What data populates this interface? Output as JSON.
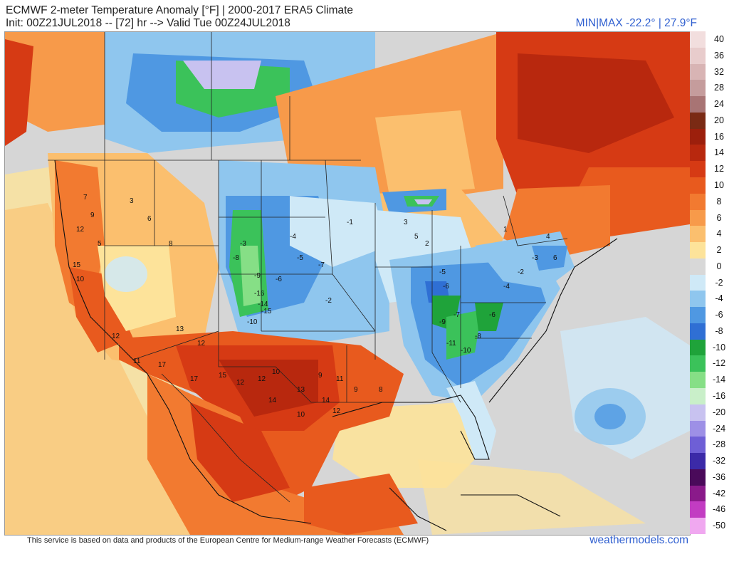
{
  "header": {
    "title_line1": "ECMWF 2-meter Temperature Anomaly [°F] | 2000-2017 ERA5 Climate",
    "title_line2": "Init: 00Z21JUL2018 -- [72] hr --> Valid Tue 00Z24JUL2018",
    "minmax": "MIN|MAX -22.2° | 27.9°F"
  },
  "footer": {
    "credit": "This service is based on data and products of the European Centre for Medium-range Weather Forecasts (ECMWF)",
    "brand": "weathermodels.com"
  },
  "colorbar": [
    {
      "label": "40",
      "color": "#f2dede"
    },
    {
      "label": "36",
      "color": "#e8cccc"
    },
    {
      "label": "32",
      "color": "#d8b4b4"
    },
    {
      "label": "28",
      "color": "#c59c9c"
    },
    {
      "label": "24",
      "color": "#a87474"
    },
    {
      "label": "20",
      "color": "#7a2a14"
    },
    {
      "label": "16",
      "color": "#9c1f0c"
    },
    {
      "label": "14",
      "color": "#b8280e"
    },
    {
      "label": "12",
      "color": "#d63a14"
    },
    {
      "label": "10",
      "color": "#e85a1e"
    },
    {
      "label": "8",
      "color": "#f27a30"
    },
    {
      "label": "6",
      "color": "#f79a4a"
    },
    {
      "label": "4",
      "color": "#fbbf6e"
    },
    {
      "label": "2",
      "color": "#fde39a"
    },
    {
      "label": "0",
      "color": "#d8d8d8"
    },
    {
      "label": "-2",
      "color": "#cfe9f7"
    },
    {
      "label": "-4",
      "color": "#8fc6ee"
    },
    {
      "label": "-6",
      "color": "#4f98e2"
    },
    {
      "label": "-8",
      "color": "#2f6fd4"
    },
    {
      "label": "-10",
      "color": "#1fa33a"
    },
    {
      "label": "-12",
      "color": "#3bc25a"
    },
    {
      "label": "-14",
      "color": "#86df86"
    },
    {
      "label": "-16",
      "color": "#c9efc9"
    },
    {
      "label": "-20",
      "color": "#c8c2f0"
    },
    {
      "label": "-24",
      "color": "#9d90e6"
    },
    {
      "label": "-28",
      "color": "#6e5fd6"
    },
    {
      "label": "-32",
      "color": "#3b2aa8"
    },
    {
      "label": "-36",
      "color": "#4a0a5a"
    },
    {
      "label": "-42",
      "color": "#8a1a8a"
    },
    {
      "label": "-46",
      "color": "#c23cc2"
    },
    {
      "label": "-50",
      "color": "#f0a8f0"
    }
  ],
  "anomaly_values": [
    {
      "v": "7"
    },
    {
      "v": "9"
    },
    {
      "v": "12"
    },
    {
      "v": "5"
    },
    {
      "v": "3"
    },
    {
      "v": "6"
    },
    {
      "v": "8"
    },
    {
      "v": "10"
    },
    {
      "v": "15"
    },
    {
      "v": "12"
    },
    {
      "v": "11"
    },
    {
      "v": "17"
    },
    {
      "v": "13"
    },
    {
      "v": "12"
    },
    {
      "v": "17"
    },
    {
      "v": "15"
    },
    {
      "v": "12"
    },
    {
      "v": "12"
    },
    {
      "v": "10"
    },
    {
      "v": "14"
    },
    {
      "v": "13"
    },
    {
      "v": "9"
    },
    {
      "v": "11"
    },
    {
      "v": "14"
    },
    {
      "v": "12"
    },
    {
      "v": "10"
    },
    {
      "v": "9"
    },
    {
      "v": "8"
    },
    {
      "v": "-3"
    },
    {
      "v": "-4"
    },
    {
      "v": "-5"
    },
    {
      "v": "-7"
    },
    {
      "v": "-16"
    },
    {
      "v": "-14"
    },
    {
      "v": "-15"
    },
    {
      "v": "-10"
    },
    {
      "v": "-9"
    },
    {
      "v": "-8"
    },
    {
      "v": "-6"
    },
    {
      "v": "-2"
    },
    {
      "v": "-1"
    },
    {
      "v": "-5"
    },
    {
      "v": "-6"
    },
    {
      "v": "-7"
    },
    {
      "v": "-9"
    },
    {
      "v": "-11"
    },
    {
      "v": "-10"
    },
    {
      "v": "-8"
    },
    {
      "v": "-6"
    },
    {
      "v": "-4"
    },
    {
      "v": "-2"
    },
    {
      "v": "-3"
    },
    {
      "v": "4"
    },
    {
      "v": "6"
    },
    {
      "v": "3"
    },
    {
      "v": "5"
    },
    {
      "v": "2"
    },
    {
      "v": "1"
    }
  ]
}
